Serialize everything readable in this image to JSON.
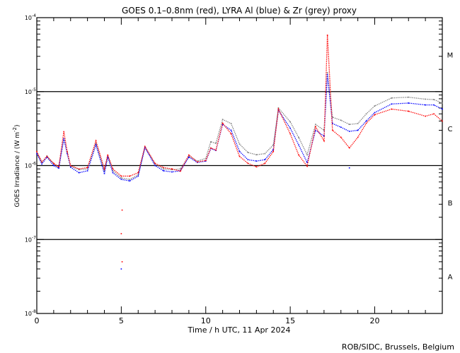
{
  "chart_data": {
    "type": "scatter",
    "title": "GOES 0.1–0.8nm (red), LYRA Al (blue) & Zr (grey) proxy",
    "xlabel": "Time / h UTC, 11 Apr 2024",
    "ylabel": "GOES Irradiance / (W m",
    "ylabel_sup": "-2",
    "ylabel_close": ")",
    "xlim": [
      0,
      24
    ],
    "ylim": [
      1e-08,
      0.0001
    ],
    "yscale": "log",
    "x_ticks": [
      "0",
      "5",
      "10",
      "15",
      "20"
    ],
    "x_tick_values": [
      0,
      5,
      10,
      15,
      20
    ],
    "y_ticks": [
      {
        "base": "10",
        "exp": "-4",
        "value": 0.0001
      },
      {
        "base": "10",
        "exp": "-5",
        "value": 1e-05
      },
      {
        "base": "10",
        "exp": "-6",
        "value": 1e-06
      },
      {
        "base": "10",
        "exp": "-7",
        "value": 1e-07
      },
      {
        "base": "10",
        "exp": "-8",
        "value": 1e-08
      }
    ],
    "flare_classes": [
      {
        "label": "M",
        "low": 1e-05,
        "high": 0.0001
      },
      {
        "label": "C",
        "low": 1e-06,
        "high": 1e-05
      },
      {
        "label": "B",
        "low": 1e-07,
        "high": 1e-06
      },
      {
        "label": "A",
        "low": 1e-08,
        "high": 1e-07
      }
    ],
    "class_lines": [
      1e-05,
      1e-06,
      1e-07
    ],
    "x": [
      0,
      0.3,
      0.6,
      1,
      1.3,
      1.6,
      1.8,
      2,
      2.5,
      3,
      3.5,
      4,
      4.2,
      4.5,
      5,
      5.5,
      6,
      6.4,
      7,
      7.5,
      8,
      8.5,
      9,
      9.5,
      10,
      10.3,
      10.6,
      11,
      11.5,
      12,
      12.5,
      13,
      13.5,
      14,
      14.3,
      15,
      15.5,
      16,
      16.5,
      17,
      17.2,
      17.5,
      18,
      18.5,
      19,
      19.5,
      20,
      21,
      22,
      23,
      23.5,
      24
    ],
    "value_unit_multiplier": 1e-06,
    "series": [
      {
        "name": "GOES 0.1-0.8nm",
        "color": "#ff0000",
        "values": [
          1.55,
          1.12,
          1.33,
          1.07,
          0.96,
          2.87,
          1.55,
          1.0,
          0.9,
          0.94,
          2.16,
          0.9,
          1.39,
          0.9,
          0.72,
          0.72,
          0.8,
          1.81,
          1.07,
          0.94,
          0.9,
          0.84,
          1.39,
          1.12,
          1.17,
          1.73,
          1.62,
          3.74,
          2.69,
          1.33,
          1.07,
          0.96,
          1.07,
          1.55,
          5.8,
          2.69,
          1.39,
          0.98,
          3.35,
          2.16,
          58,
          3.0,
          2.41,
          1.73,
          2.41,
          3.74,
          4.87,
          5.8,
          5.43,
          4.65,
          5.0,
          3.99
        ]
      },
      {
        "name": "LYRA Al proxy",
        "color": "#0000ff",
        "values": [
          1.45,
          1.05,
          1.3,
          1.0,
          0.92,
          2.3,
          1.45,
          0.95,
          0.8,
          0.85,
          1.9,
          0.78,
          1.3,
          0.8,
          0.65,
          0.62,
          0.72,
          1.75,
          1.0,
          0.85,
          0.82,
          0.85,
          1.3,
          1.1,
          1.15,
          1.7,
          1.6,
          3.6,
          3.0,
          1.55,
          1.2,
          1.15,
          1.2,
          1.65,
          5.6,
          3.2,
          1.9,
          1.1,
          3.0,
          2.5,
          17,
          3.7,
          3.3,
          2.9,
          3.0,
          4.0,
          5.2,
          6.8,
          7.0,
          6.6,
          6.6,
          5.8
        ]
      },
      {
        "name": "LYRA Zr proxy",
        "color": "#808080",
        "values": [
          1.5,
          1.1,
          1.35,
          1.05,
          0.95,
          2.3,
          1.5,
          0.98,
          0.88,
          0.9,
          2.0,
          0.85,
          1.35,
          0.85,
          0.68,
          0.65,
          0.75,
          1.8,
          1.05,
          0.9,
          0.88,
          0.9,
          1.35,
          1.15,
          1.25,
          2.1,
          2.0,
          4.2,
          3.7,
          1.95,
          1.5,
          1.4,
          1.45,
          1.9,
          6.0,
          3.9,
          2.4,
          1.4,
          3.6,
          3.0,
          18,
          4.5,
          4.1,
          3.6,
          3.7,
          5.0,
          6.4,
          8.2,
          8.4,
          7.9,
          7.8,
          7.0
        ]
      }
    ],
    "outliers": [
      {
        "series": "GOES 0.1-0.8nm",
        "x": 5.0,
        "value": 1.2e-07
      },
      {
        "series": "GOES 0.1-0.8nm",
        "x": 5.05,
        "value": 5e-08
      },
      {
        "series": "GOES 0.1-0.8nm",
        "x": 5.05,
        "value": 2.5e-07
      },
      {
        "series": "LYRA Al proxy",
        "x": 5.0,
        "value": 4e-08
      },
      {
        "series": "LYRA Al proxy",
        "x": 18.5,
        "value": 9.3e-07
      }
    ],
    "grid": false,
    "legend": "none"
  },
  "footer": "ROB/SIDC, Brussels, Belgium"
}
